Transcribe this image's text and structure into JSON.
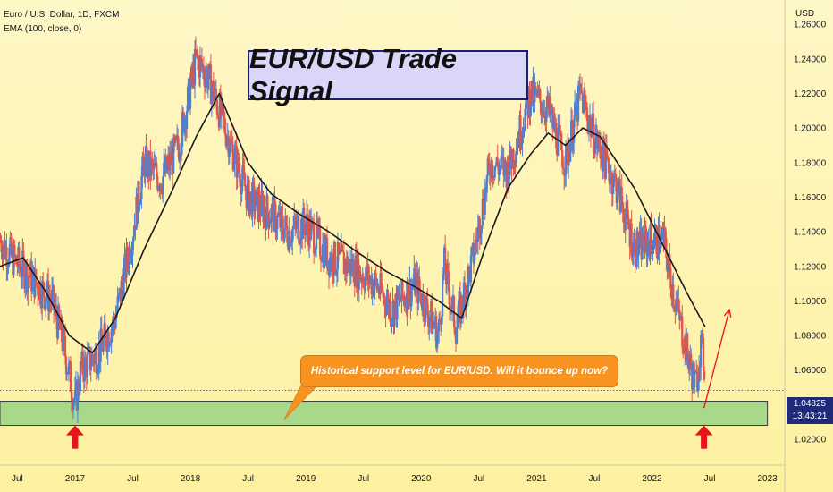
{
  "header": {
    "symbol": "Euro / U.S. Dollar, 1D, FXCM",
    "indicator": "EMA (100, close, 0)"
  },
  "title_box": "EUR/USD Trade Signal",
  "callout": "Historical support level for EUR/USD. Will it bounce up now?",
  "price_marker": {
    "price": "1.04825",
    "countdown": "13:43:21"
  },
  "colors": {
    "background_top": "#fef7c6",
    "background_bottom": "#fdf1a0",
    "support_zone": "#a8d88a",
    "arrow": "#e8131c",
    "ema_line": "#1a1a1a",
    "candle_up": "#4a7fd6",
    "candle_down": "#e0564a",
    "callout_bg": "#f7931e",
    "price_marker_bg": "#1f2a78"
  },
  "chart_data": {
    "type": "line",
    "y_axis": {
      "unit": "USD",
      "side": "right",
      "range": [
        1.005,
        1.272
      ],
      "ticks": [
        "1.02000",
        "1.04000",
        "1.06000",
        "1.08000",
        "1.10000",
        "1.12000",
        "1.14000",
        "1.16000",
        "1.18000",
        "1.20000",
        "1.22000",
        "1.24000",
        "1.26000"
      ]
    },
    "x_axis": {
      "range": [
        2016.35,
        2023.15
      ],
      "ticks": [
        {
          "t": 2016.5,
          "label": "Jul"
        },
        {
          "t": 2017.0,
          "label": "2017"
        },
        {
          "t": 2017.5,
          "label": "Jul"
        },
        {
          "t": 2018.0,
          "label": "2018"
        },
        {
          "t": 2018.5,
          "label": "Jul"
        },
        {
          "t": 2019.0,
          "label": "2019"
        },
        {
          "t": 2019.5,
          "label": "Jul"
        },
        {
          "t": 2020.0,
          "label": "2020"
        },
        {
          "t": 2020.5,
          "label": "Jul"
        },
        {
          "t": 2021.0,
          "label": "2021"
        },
        {
          "t": 2021.5,
          "label": "Jul"
        },
        {
          "t": 2022.0,
          "label": "2022"
        },
        {
          "t": 2022.5,
          "label": "Jul"
        },
        {
          "t": 2023.0,
          "label": "2023"
        }
      ]
    },
    "price_path": [
      [
        2016.35,
        1.135
      ],
      [
        2016.45,
        1.125
      ],
      [
        2016.6,
        1.115
      ],
      [
        2016.8,
        1.1
      ],
      [
        2016.9,
        1.075
      ],
      [
        2017.0,
        1.04
      ],
      [
        2017.05,
        1.06
      ],
      [
        2017.2,
        1.07
      ],
      [
        2017.35,
        1.09
      ],
      [
        2017.5,
        1.14
      ],
      [
        2017.6,
        1.18
      ],
      [
        2017.75,
        1.17
      ],
      [
        2017.9,
        1.19
      ],
      [
        2018.05,
        1.24
      ],
      [
        2018.15,
        1.23
      ],
      [
        2018.3,
        1.2
      ],
      [
        2018.5,
        1.16
      ],
      [
        2018.7,
        1.15
      ],
      [
        2018.85,
        1.14
      ],
      [
        2019.0,
        1.145
      ],
      [
        2019.2,
        1.125
      ],
      [
        2019.4,
        1.12
      ],
      [
        2019.6,
        1.11
      ],
      [
        2019.75,
        1.095
      ],
      [
        2019.95,
        1.11
      ],
      [
        2020.15,
        1.08
      ],
      [
        2020.2,
        1.12
      ],
      [
        2020.3,
        1.085
      ],
      [
        2020.45,
        1.125
      ],
      [
        2020.6,
        1.18
      ],
      [
        2020.75,
        1.175
      ],
      [
        2020.95,
        1.22
      ],
      [
        2021.1,
        1.21
      ],
      [
        2021.25,
        1.18
      ],
      [
        2021.38,
        1.22
      ],
      [
        2021.5,
        1.195
      ],
      [
        2021.6,
        1.18
      ],
      [
        2021.7,
        1.165
      ],
      [
        2021.85,
        1.13
      ],
      [
        2022.0,
        1.135
      ],
      [
        2022.1,
        1.135
      ],
      [
        2022.2,
        1.1
      ],
      [
        2022.32,
        1.065
      ],
      [
        2022.38,
        1.05
      ],
      [
        2022.42,
        1.075
      ],
      [
        2022.46,
        1.06
      ]
    ],
    "ema_100": [
      [
        2016.35,
        1.12
      ],
      [
        2016.55,
        1.125
      ],
      [
        2016.75,
        1.105
      ],
      [
        2016.95,
        1.08
      ],
      [
        2017.15,
        1.07
      ],
      [
        2017.35,
        1.09
      ],
      [
        2017.6,
        1.13
      ],
      [
        2017.85,
        1.165
      ],
      [
        2018.05,
        1.195
      ],
      [
        2018.25,
        1.22
      ],
      [
        2018.5,
        1.18
      ],
      [
        2018.7,
        1.162
      ],
      [
        2018.95,
        1.15
      ],
      [
        2019.2,
        1.14
      ],
      [
        2019.45,
        1.128
      ],
      [
        2019.7,
        1.117
      ],
      [
        2019.95,
        1.108
      ],
      [
        2020.15,
        1.1
      ],
      [
        2020.35,
        1.09
      ],
      [
        2020.55,
        1.13
      ],
      [
        2020.75,
        1.165
      ],
      [
        2020.95,
        1.185
      ],
      [
        2021.1,
        1.197
      ],
      [
        2021.25,
        1.19
      ],
      [
        2021.4,
        1.2
      ],
      [
        2021.55,
        1.195
      ],
      [
        2021.7,
        1.18
      ],
      [
        2021.85,
        1.165
      ],
      [
        2022.0,
        1.145
      ],
      [
        2022.15,
        1.125
      ],
      [
        2022.3,
        1.105
      ],
      [
        2022.46,
        1.085
      ]
    ],
    "support_zone": {
      "y_from": 1.028,
      "y_to": 1.042,
      "x_from": 2016.35,
      "x_to": 2023.0
    },
    "current_price": 1.04825,
    "projection": [
      [
        2022.45,
        1.038
      ],
      [
        2022.67,
        1.095
      ]
    ],
    "up_arrows": [
      {
        "t": 2017.0,
        "y": 1.03
      },
      {
        "t": 2022.45,
        "y": 1.03
      }
    ]
  }
}
